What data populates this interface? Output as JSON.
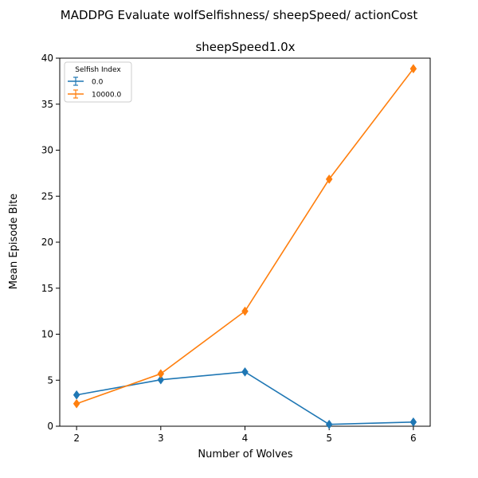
{
  "suptitle": "MADDPG Evaluate wolfSelfishness/ sheepSpeed/ actionCost",
  "chart_data": {
    "type": "line",
    "title": "sheepSpeed1.0x",
    "xlabel": "Number of Wolves",
    "ylabel": "Mean Episode Bite",
    "x": [
      2,
      3,
      4,
      5,
      6
    ],
    "xticks": [
      "2",
      "3",
      "4",
      "5",
      "6"
    ],
    "yticks": [
      "0",
      "5",
      "10",
      "15",
      "20",
      "25",
      "30",
      "35",
      "40"
    ],
    "ylim": [
      0,
      40
    ],
    "grid": false,
    "legend": {
      "title": "Selfish Index",
      "placement": "top-left"
    },
    "series": [
      {
        "name": "0.0",
        "color": "#1f77b4",
        "values": [
          3.4,
          5.05,
          5.9,
          0.2,
          0.45
        ]
      },
      {
        "name": "10000.0",
        "color": "#ff7f0e",
        "values": [
          2.45,
          5.7,
          12.5,
          26.85,
          38.85
        ]
      }
    ]
  }
}
